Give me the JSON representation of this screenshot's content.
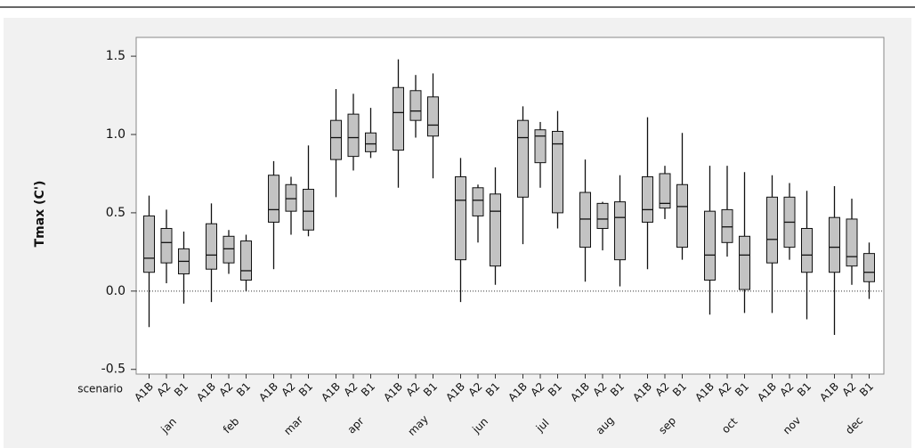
{
  "chart_data": {
    "type": "boxplot",
    "y_label": "Tmax (C')",
    "x_row_label": "scenario",
    "ylim": [
      -0.53,
      1.62
    ],
    "yticks": [
      -0.5,
      {
        "value": 0,
        "label": "0.0"
      },
      0.5,
      {
        "value": 1,
        "label": "1.0"
      },
      1.5
    ],
    "reference_line": 0,
    "color": "#c3c3c3",
    "groups": [
      {
        "name": "jan",
        "boxes": [
          {
            "scenario": "A1B",
            "low": -0.23,
            "q1": 0.12,
            "median": 0.21,
            "q3": 0.48,
            "high": 0.61
          },
          {
            "scenario": "A2",
            "low": 0.05,
            "q1": 0.18,
            "median": 0.31,
            "q3": 0.4,
            "high": 0.52
          },
          {
            "scenario": "B1",
            "low": -0.08,
            "q1": 0.11,
            "median": 0.19,
            "q3": 0.27,
            "high": 0.38
          }
        ]
      },
      {
        "name": "feb",
        "boxes": [
          {
            "scenario": "A1B",
            "low": -0.07,
            "q1": 0.14,
            "median": 0.23,
            "q3": 0.43,
            "high": 0.56
          },
          {
            "scenario": "A2",
            "low": 0.11,
            "q1": 0.18,
            "median": 0.27,
            "q3": 0.35,
            "high": 0.39
          },
          {
            "scenario": "B1",
            "low": 0.0,
            "q1": 0.07,
            "median": 0.13,
            "q3": 0.32,
            "high": 0.36
          }
        ]
      },
      {
        "name": "mar",
        "boxes": [
          {
            "scenario": "A1B",
            "low": 0.14,
            "q1": 0.44,
            "median": 0.52,
            "q3": 0.74,
            "high": 0.83
          },
          {
            "scenario": "A2",
            "low": 0.36,
            "q1": 0.51,
            "median": 0.59,
            "q3": 0.68,
            "high": 0.73
          },
          {
            "scenario": "B1",
            "low": 0.35,
            "q1": 0.39,
            "median": 0.51,
            "q3": 0.65,
            "high": 0.93
          }
        ]
      },
      {
        "name": "apr",
        "boxes": [
          {
            "scenario": "A1B",
            "low": 0.6,
            "q1": 0.84,
            "median": 0.98,
            "q3": 1.09,
            "high": 1.29
          },
          {
            "scenario": "A2",
            "low": 0.77,
            "q1": 0.86,
            "median": 0.98,
            "q3": 1.13,
            "high": 1.26
          },
          {
            "scenario": "B1",
            "low": 0.85,
            "q1": 0.89,
            "median": 0.94,
            "q3": 1.01,
            "high": 1.17
          }
        ]
      },
      {
        "name": "may",
        "boxes": [
          {
            "scenario": "A1B",
            "low": 0.66,
            "q1": 0.9,
            "median": 1.14,
            "q3": 1.3,
            "high": 1.48
          },
          {
            "scenario": "A2",
            "low": 0.98,
            "q1": 1.09,
            "median": 1.15,
            "q3": 1.28,
            "high": 1.38
          },
          {
            "scenario": "B1",
            "low": 0.72,
            "q1": 0.99,
            "median": 1.06,
            "q3": 1.24,
            "high": 1.39
          }
        ]
      },
      {
        "name": "jun",
        "boxes": [
          {
            "scenario": "A1B",
            "low": -0.07,
            "q1": 0.2,
            "median": 0.58,
            "q3": 0.73,
            "high": 0.85
          },
          {
            "scenario": "A2",
            "low": 0.31,
            "q1": 0.48,
            "median": 0.58,
            "q3": 0.66,
            "high": 0.68
          },
          {
            "scenario": "B1",
            "low": 0.04,
            "q1": 0.16,
            "median": 0.51,
            "q3": 0.62,
            "high": 0.79
          }
        ]
      },
      {
        "name": "jul",
        "boxes": [
          {
            "scenario": "A1B",
            "low": 0.3,
            "q1": 0.6,
            "median": 0.98,
            "q3": 1.09,
            "high": 1.18
          },
          {
            "scenario": "A2",
            "low": 0.66,
            "q1": 0.82,
            "median": 0.99,
            "q3": 1.03,
            "high": 1.08
          },
          {
            "scenario": "B1",
            "low": 0.4,
            "q1": 0.5,
            "median": 0.94,
            "q3": 1.02,
            "high": 1.15
          }
        ]
      },
      {
        "name": "aug",
        "boxes": [
          {
            "scenario": "A1B",
            "low": 0.06,
            "q1": 0.28,
            "median": 0.46,
            "q3": 0.63,
            "high": 0.84
          },
          {
            "scenario": "A2",
            "low": 0.26,
            "q1": 0.4,
            "median": 0.46,
            "q3": 0.56,
            "high": 0.57
          },
          {
            "scenario": "B1",
            "low": 0.03,
            "q1": 0.2,
            "median": 0.47,
            "q3": 0.57,
            "high": 0.74
          }
        ]
      },
      {
        "name": "sep",
        "boxes": [
          {
            "scenario": "A1B",
            "low": 0.14,
            "q1": 0.44,
            "median": 0.52,
            "q3": 0.73,
            "high": 1.11
          },
          {
            "scenario": "A2",
            "low": 0.46,
            "q1": 0.53,
            "median": 0.56,
            "q3": 0.75,
            "high": 0.8
          },
          {
            "scenario": "B1",
            "low": 0.2,
            "q1": 0.28,
            "median": 0.54,
            "q3": 0.68,
            "high": 1.01
          }
        ]
      },
      {
        "name": "oct",
        "boxes": [
          {
            "scenario": "A1B",
            "low": -0.15,
            "q1": 0.07,
            "median": 0.23,
            "q3": 0.51,
            "high": 0.8
          },
          {
            "scenario": "A2",
            "low": 0.22,
            "q1": 0.31,
            "median": 0.41,
            "q3": 0.52,
            "high": 0.8
          },
          {
            "scenario": "B1",
            "low": -0.14,
            "q1": 0.01,
            "median": 0.23,
            "q3": 0.35,
            "high": 0.76
          }
        ]
      },
      {
        "name": "nov",
        "boxes": [
          {
            "scenario": "A1B",
            "low": -0.14,
            "q1": 0.18,
            "median": 0.33,
            "q3": 0.6,
            "high": 0.74
          },
          {
            "scenario": "A2",
            "low": 0.2,
            "q1": 0.28,
            "median": 0.44,
            "q3": 0.6,
            "high": 0.69
          },
          {
            "scenario": "B1",
            "low": -0.18,
            "q1": 0.12,
            "median": 0.23,
            "q3": 0.4,
            "high": 0.64
          }
        ]
      },
      {
        "name": "dec",
        "boxes": [
          {
            "scenario": "A1B",
            "low": -0.28,
            "q1": 0.12,
            "median": 0.28,
            "q3": 0.47,
            "high": 0.67
          },
          {
            "scenario": "A2",
            "low": 0.04,
            "q1": 0.16,
            "median": 0.22,
            "q3": 0.46,
            "high": 0.59
          },
          {
            "scenario": "B1",
            "low": -0.05,
            "q1": 0.06,
            "median": 0.12,
            "q3": 0.24,
            "high": 0.31
          }
        ]
      }
    ]
  }
}
